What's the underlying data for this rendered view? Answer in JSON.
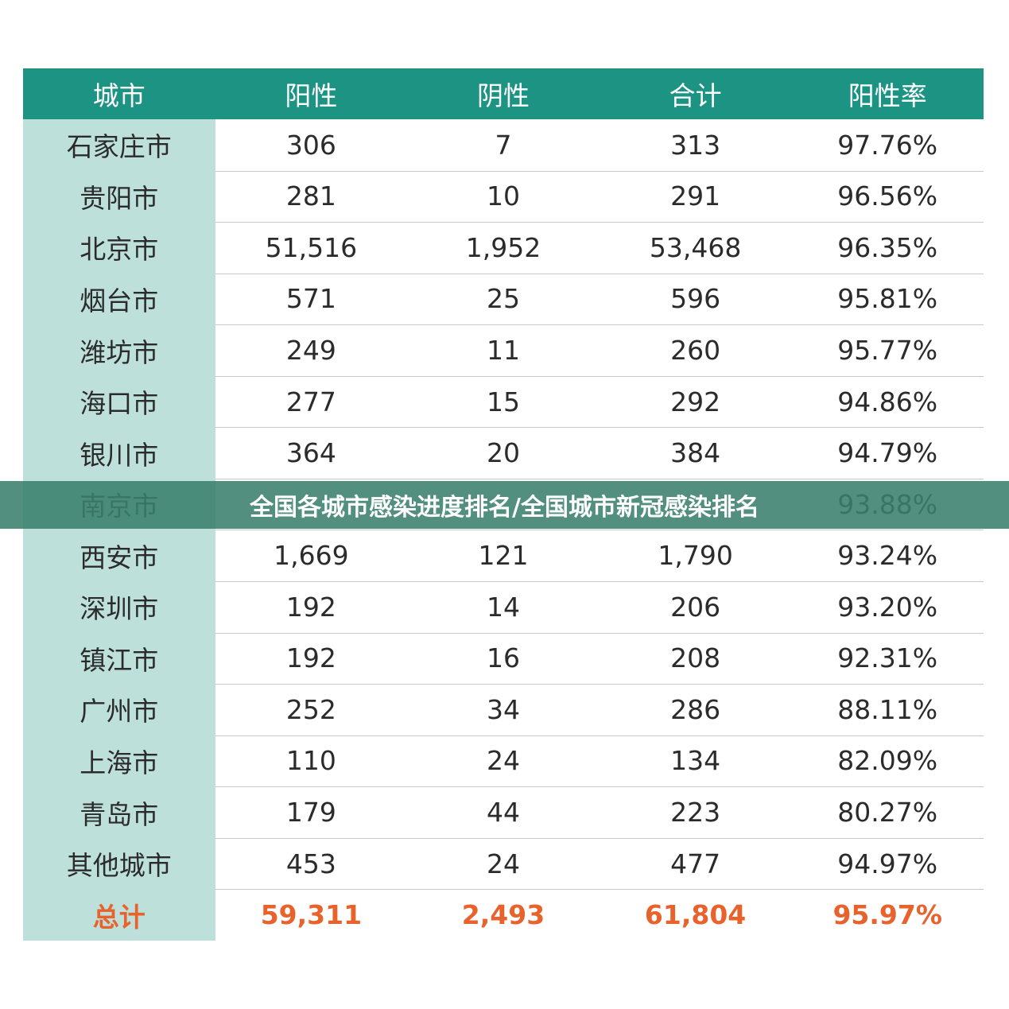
{
  "header": {
    "title": "全国各城市感染进度排名/全国城市新冠感染排名"
  },
  "table": {
    "columns": [
      "城市",
      "阳性",
      "阴性",
      "合计",
      "阳性率"
    ],
    "rows": [
      [
        "石家庄市",
        "306",
        "7",
        "313",
        "97.76%"
      ],
      [
        "贵阳市",
        "281",
        "10",
        "291",
        "96.56%"
      ],
      [
        "北京市",
        "51,516",
        "1,952",
        "53,468",
        "96.35%"
      ],
      [
        "烟台市",
        "571",
        "25",
        "596",
        "95.81%"
      ],
      [
        "潍坊市",
        "249",
        "11",
        "260",
        "95.77%"
      ],
      [
        "海口市",
        "277",
        "15",
        "292",
        "94.86%"
      ],
      [
        "银川市",
        "364",
        "20",
        "384",
        "94.79%"
      ],
      [
        "南京市",
        null,
        null,
        null,
        "93.88%"
      ],
      [
        "西安市",
        "1,669",
        "121",
        "1,790",
        "93.24%"
      ],
      [
        "深圳市",
        "192",
        "14",
        "206",
        "93.20%"
      ],
      [
        "镇江市",
        "192",
        "16",
        "208",
        "92.31%"
      ],
      [
        "广州市",
        "252",
        "34",
        "286",
        "88.11%"
      ],
      [
        "上海市",
        "110",
        "24",
        "134",
        "82.09%"
      ],
      [
        "青岛市",
        "179",
        "44",
        "223",
        "80.27%"
      ],
      [
        "其他城市",
        "453",
        "24",
        "477",
        "94.97%"
      ]
    ],
    "total": [
      "总计",
      "59,311",
      "2,493",
      "61,804",
      "95.97%"
    ]
  }
}
